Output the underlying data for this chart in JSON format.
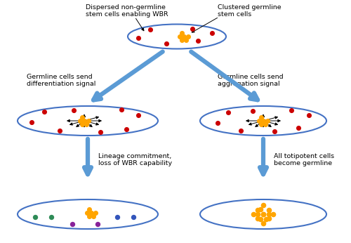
{
  "bg_color": "#ffffff",
  "ellipse_color": "#4472c4",
  "ellipse_lw": 1.5,
  "orange_color": "#FFA500",
  "red_color": "#CC0000",
  "green_color": "#2E8B57",
  "blue_dot_color": "#3355BB",
  "purple_color": "#882299",
  "arrow_color": "#5B9BD5",
  "font_size": 6.8,
  "top_label_left": "Dispersed non-germline\nstem cells enabling WBR",
  "top_label_right": "Clustered germline\nstem cells",
  "mid_left_label": "Germline cells send\ndifferentiation signal",
  "mid_right_label": "Germline cells send\naggregation signal",
  "bot_left_label": "Lineage commitment,\nloss of WBR capability",
  "bot_right_label": "All totipotent cells\nbecome germline"
}
